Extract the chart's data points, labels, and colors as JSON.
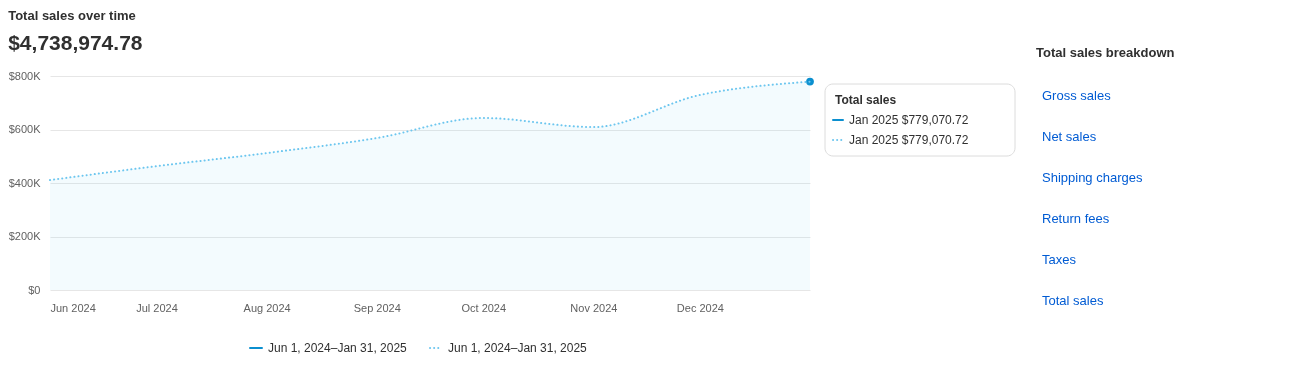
{
  "chart_data": [
    {
      "type": "line",
      "title": "Total sales over time",
      "subtitle": "$4,738,974.78",
      "x": [
        "2024-06",
        "2024-07",
        "2024-08",
        "2024-09",
        "2024-10",
        "2024-11",
        "2024-12",
        "2025-01"
      ],
      "series": [
        {
          "name": "Jun 1, 2024–Jan 31, 2025",
          "color": "#0b8fcf",
          "line_style": "solid",
          "marker": "circle",
          "values": [
            null,
            null,
            null,
            null,
            null,
            null,
            null,
            779070.72
          ]
        },
        {
          "name": "Jun 1, 2024–Jan 31, 2025",
          "type": "area",
          "color": "#6cc6ef",
          "line_style": "dotted",
          "values": [
            411000,
            463000,
            512000,
            568000,
            643000,
            609000,
            729000,
            779070.72
          ]
        }
      ],
      "xlim": [
        "2024-06",
        "2025-01"
      ],
      "xticks": [
        {
          "value": "2024-06",
          "label": "Jun 2024"
        },
        {
          "value": "2024-07",
          "label": "Jul 2024"
        },
        {
          "value": "2024-08",
          "label": "Aug 2024"
        },
        {
          "value": "2024-09",
          "label": "Sep 2024"
        },
        {
          "value": "2024-10",
          "label": "Oct 2024"
        },
        {
          "value": "2024-11",
          "label": "Nov 2024"
        },
        {
          "value": "2024-12",
          "label": "Dec 2024"
        }
      ],
      "ylim": [
        0,
        800000
      ],
      "yticks": [
        {
          "value": 0,
          "label": "$0"
        },
        {
          "value": 200000,
          "label": "$200K"
        },
        {
          "value": 400000,
          "label": "$400K"
        },
        {
          "value": 600000,
          "label": "$600K"
        },
        {
          "value": 800000,
          "label": "$800K"
        }
      ],
      "grid": "y",
      "legend": "bottom",
      "annotations": [
        "Total sales",
        "Jan 2025 $779,070.72",
        "Jan 2025 $779,070.72"
      ]
    },
    {
      "type": "other",
      "title": "Total sales breakdown",
      "annotations": [
        "Gross sales",
        "Net sales",
        "Shipping charges",
        "Return fees",
        "Taxes",
        "Total sales"
      ]
    }
  ]
}
